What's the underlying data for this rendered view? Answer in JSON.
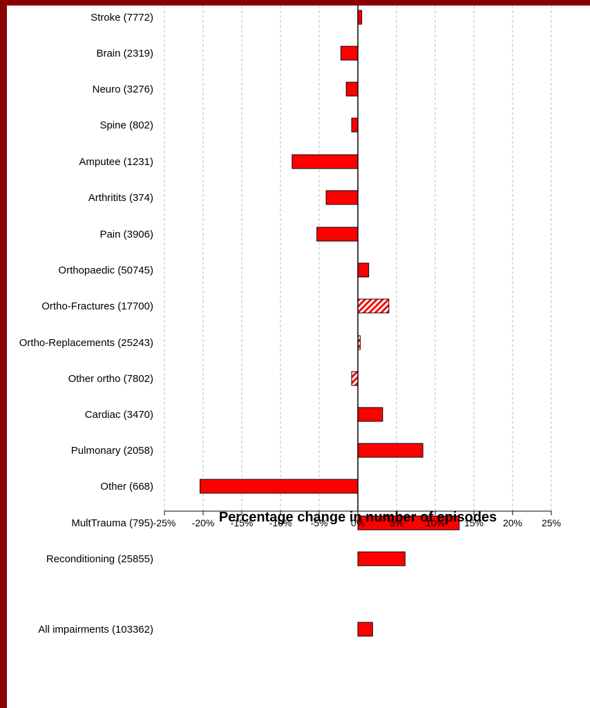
{
  "chart_data": {
    "type": "bar",
    "orientation": "horizontal",
    "categories": [
      "Stroke (7772)",
      "Brain (2319)",
      "Neuro (3276)",
      "Spine (802)",
      "Amputee (1231)",
      "Arthritits (374)",
      "Pain (3906)",
      "Orthopaedic (50745)",
      "Ortho-Fractures (17700)",
      "Ortho-Replacements (25243)",
      "Other ortho (7802)",
      "Cardiac (3470)",
      "Pulmonary (2058)",
      "Other (668)",
      "MultTrauma (795)",
      "Reconditioning (25855)",
      "All impairments (103362)"
    ],
    "values": [
      0.5,
      -2.2,
      -1.5,
      -0.8,
      -8.5,
      -4.1,
      -5.3,
      1.4,
      4.0,
      0.3,
      -0.8,
      3.2,
      8.4,
      -20.4,
      13.1,
      6.1,
      1.9
    ],
    "hatched": [
      false,
      false,
      false,
      false,
      false,
      false,
      false,
      false,
      true,
      true,
      true,
      false,
      false,
      false,
      false,
      false,
      false
    ],
    "xlabel": "Percentage change in number of episodes",
    "xlim": [
      -25,
      25
    ],
    "x_ticks": [
      -25,
      -20,
      -15,
      -10,
      -5,
      0,
      5,
      10,
      15,
      20,
      25
    ],
    "x_tick_labels": [
      "-25%",
      "-20%",
      "-15%",
      "-10%",
      "-5%",
      "0%",
      "5%",
      "10%",
      "15%",
      "20%",
      "25%"
    ],
    "grid": "vertical dashed",
    "bar_color": "#ff0000",
    "frame_color": "#8b0000"
  }
}
